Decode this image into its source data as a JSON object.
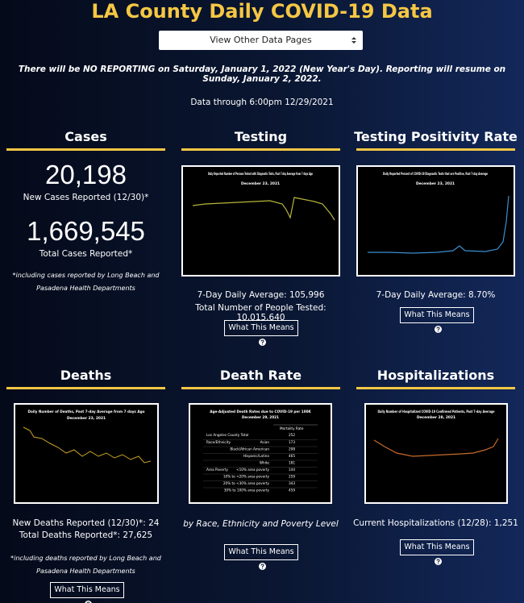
{
  "header": {
    "title": "LA County Daily COVID-19 Data",
    "select_label": "View Other Data Pages",
    "notice": "There will be NO REPORTING on Saturday, January 1, 2022 (New Year's Day). Reporting will resume on Sunday, January 2, 2022.",
    "data_through": "Data through 6:00pm 12/29/2021"
  },
  "cases": {
    "heading": "Cases",
    "new_cases": "20,198",
    "new_cases_label": "New Cases Reported (12/30)*",
    "total_cases": "1,669,545",
    "total_cases_label": "Total Cases Reported*",
    "note": "*including cases reported by Long Beach and Pasadena Health Departments"
  },
  "testing": {
    "heading": "Testing",
    "chart_title": "Daily Reported Number of Persons Tested with Diagnostic Tests, Past 7-day Average from 7 days Ago",
    "chart_date": "December 23, 2021",
    "daily_average": "7-Day Daily Average: 105,996",
    "total_tested": "Total Number of People Tested: 10,015,640",
    "button": "What This Means"
  },
  "positivity": {
    "heading": "Testing Positivity Rate",
    "chart_title": "Daily Reported Percent of COVID-19 Diagnostic Tests that are Positive, Past 7-day Average",
    "chart_date": "December 23, 2021",
    "daily_average": "7-Day Daily Average: 8.70%",
    "button": "What This Means"
  },
  "deaths": {
    "heading": "Deaths",
    "chart_title": "Daily Number of Deaths, Past 7-day Average from 7 days Ago",
    "chart_date": "December 23, 2021",
    "new_deaths": "New Deaths Reported (12/30)*: 24",
    "total_deaths": "Total Deaths Reported*: 27,625",
    "note": "*including deaths reported by Long Beach and Pasadena Health Departments",
    "button": "What This Means"
  },
  "death_rate": {
    "heading": "Death Rate",
    "chart_title": "Age-Adjusted Death Rates due to COVID-19 per 100K",
    "chart_date": "December 29, 2021",
    "column_header": "Mortality Rate",
    "total_label": "Los Angeles County Total",
    "total_rate": "252",
    "rows": [
      {
        "group": "Race/Ethnicity",
        "item": "Asian",
        "rate": "173"
      },
      {
        "item": "Black/African American",
        "rate": "298"
      },
      {
        "item": "Hispanic/Latino",
        "rate": "465"
      },
      {
        "item": "White",
        "rate": "181"
      },
      {
        "group": "Area Poverty",
        "item": "<10% area poverty",
        "rate": "144"
      },
      {
        "item": "10% to <20% area poverty",
        "rate": "259"
      },
      {
        "item": "20% to <30% area poverty",
        "rate": "343"
      },
      {
        "item": "30% to 100% area poverty",
        "rate": "459"
      }
    ],
    "caption": "by Race, Ethnicity and Poverty Level",
    "button": "What This Means"
  },
  "hospitalizations": {
    "heading": "Hospitalizations",
    "chart_title": "Daily Number of Hospitalized COVID-19 Confirmed Patients, Past 7-day Average",
    "chart_date": "December 28, 2021",
    "current": "Current Hospitalizations (12/28): 1,251",
    "button": "What This Means"
  }
}
